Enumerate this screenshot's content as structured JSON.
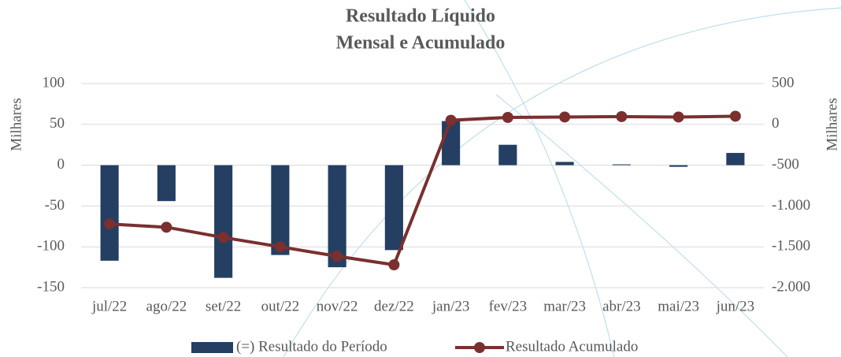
{
  "chart_data": {
    "type": "bar_line",
    "title": [
      "Resultado Líquido",
      "Mensal e Acumulado"
    ],
    "ylabel": "Milhares",
    "y2label": "Milhares",
    "categories": [
      "jul/22",
      "ago/22",
      "set/22",
      "out/22",
      "nov/22",
      "dez/22",
      "jan/23",
      "fev/23",
      "mar/23",
      "abr/23",
      "mai/23",
      "jun/23"
    ],
    "series": [
      {
        "name": "(=) Resultado do Período",
        "type": "bar",
        "color": "#243f61",
        "values": [
          -117,
          -44,
          -138,
          -110,
          -125,
          -104,
          54,
          25,
          4,
          1,
          -2,
          15
        ]
      },
      {
        "name": "Resultado Acumulado",
        "type": "line",
        "axis": "y2",
        "color": "#7b2f2f",
        "values": [
          -1220,
          -1260,
          -1385,
          -1500,
          -1615,
          -1720,
          50,
          85,
          90,
          95,
          90,
          100
        ]
      }
    ],
    "ylim": [
      -150,
      100
    ],
    "yticks": [
      -150,
      -100,
      -50,
      0,
      50,
      100
    ],
    "y2lim": [
      -2000,
      500
    ],
    "y2ticks": [
      {
        "value": -2000,
        "label": "-2.000"
      },
      {
        "value": -1500,
        "label": "-1.500"
      },
      {
        "value": -1000,
        "label": "-1.000"
      },
      -500,
      0,
      500
    ],
    "grid": true,
    "legend": "bottom"
  }
}
